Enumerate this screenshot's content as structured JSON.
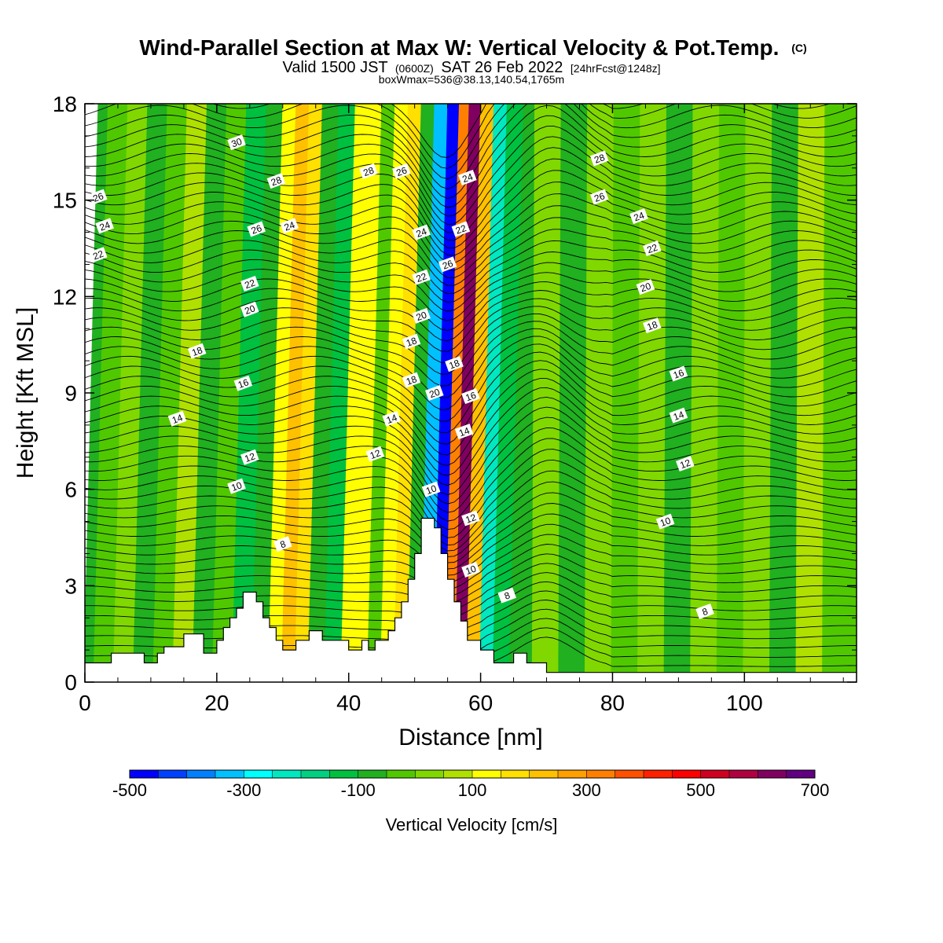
{
  "chart_data": {
    "type": "heatmap",
    "title_main": "Wind-Parallel Section at Max W: Vertical Velocity & Pot.Temp.",
    "title_mark": "(C)",
    "subtitle_a": "Valid 1500 JST",
    "subtitle_b": "(0600Z)",
    "subtitle_c": "SAT 26 Feb 2022",
    "subtitle_d": "[24hrFcst@1248z]",
    "subtitle2": "boxWmax=536@38.13,140.54,1765m",
    "xlabel": "Distance [nm]",
    "ylabel": "Height [Kft MSL]",
    "xlim": [
      0,
      117
    ],
    "ylim": [
      0,
      18
    ],
    "xticks": [
      "0",
      "20",
      "40",
      "60",
      "80",
      "100"
    ],
    "xtick_values": [
      0,
      20,
      40,
      60,
      80,
      100
    ],
    "yticks": [
      "0",
      "3",
      "6",
      "9",
      "12",
      "15",
      "18"
    ],
    "ytick_values": [
      0,
      3,
      6,
      9,
      12,
      15,
      18
    ],
    "colorbar": {
      "title": "Vertical Velocity [cm/s]",
      "labels": [
        "-500",
        "-300",
        "-100",
        "100",
        "300",
        "500",
        "700"
      ],
      "label_values": [
        -500,
        -300,
        -100,
        100,
        300,
        500,
        700
      ],
      "min": -500,
      "max": 700,
      "colors": [
        "#0000ff",
        "#0040ff",
        "#0080ff",
        "#00c0ff",
        "#00ffff",
        "#00e8c0",
        "#00d080",
        "#00c040",
        "#20b020",
        "#50c800",
        "#80d800",
        "#b0e000",
        "#ffff00",
        "#ffe000",
        "#ffc000",
        "#ffa000",
        "#ff8000",
        "#ff5000",
        "#ff2000",
        "#ff0000",
        "#d00020",
        "#b00040",
        "#800060",
        "#600080"
      ]
    },
    "bands": [
      {
        "x": 0,
        "w": -80
      },
      {
        "x": 3,
        "w": -40
      },
      {
        "x": 6,
        "w": 20
      },
      {
        "x": 9,
        "w": -60
      },
      {
        "x": 12,
        "w": -30
      },
      {
        "x": 15,
        "w": 60
      },
      {
        "x": 18,
        "w": -90
      },
      {
        "x": 21,
        "w": -20
      },
      {
        "x": 24,
        "w": -150
      },
      {
        "x": 27,
        "w": -100
      },
      {
        "x": 29,
        "w": 100
      },
      {
        "x": 31,
        "w": 230
      },
      {
        "x": 33,
        "w": 150
      },
      {
        "x": 35,
        "w": -60
      },
      {
        "x": 38,
        "w": -150
      },
      {
        "x": 40,
        "w": 100
      },
      {
        "x": 42,
        "w": 140
      },
      {
        "x": 44,
        "w": -40
      },
      {
        "x": 46,
        "w": 120
      },
      {
        "x": 48,
        "w": 150
      },
      {
        "x": 50,
        "w": -100
      },
      {
        "x": 52,
        "w": -320
      },
      {
        "x": 54,
        "w": -480
      },
      {
        "x": 55.5,
        "w": 300
      },
      {
        "x": 57,
        "w": 620
      },
      {
        "x": 59,
        "w": 200
      },
      {
        "x": 61,
        "w": -250
      },
      {
        "x": 63,
        "w": -120
      },
      {
        "x": 66,
        "w": -60
      },
      {
        "x": 70,
        "w": 40
      },
      {
        "x": 74,
        "w": -80
      },
      {
        "x": 78,
        "w": 20
      },
      {
        "x": 82,
        "w": -50
      },
      {
        "x": 86,
        "w": 30
      },
      {
        "x": 90,
        "w": -70
      },
      {
        "x": 94,
        "w": 40
      },
      {
        "x": 98,
        "w": -40
      },
      {
        "x": 102,
        "w": 30
      },
      {
        "x": 106,
        "w": -60
      },
      {
        "x": 110,
        "w": 50
      },
      {
        "x": 114,
        "w": -30
      },
      {
        "x": 117,
        "w": -50
      }
    ],
    "terrain": [
      [
        0,
        0.6
      ],
      [
        4,
        0.6
      ],
      [
        4,
        0.9
      ],
      [
        9,
        0.9
      ],
      [
        9,
        0.6
      ],
      [
        11,
        0.6
      ],
      [
        11,
        0.9
      ],
      [
        12,
        0.9
      ],
      [
        12,
        1.1
      ],
      [
        15,
        1.1
      ],
      [
        15,
        1.5
      ],
      [
        18,
        1.5
      ],
      [
        18,
        0.9
      ],
      [
        20,
        0.9
      ],
      [
        20,
        1.3
      ],
      [
        21,
        1.3
      ],
      [
        21,
        1.7
      ],
      [
        22,
        1.7
      ],
      [
        22,
        2.0
      ],
      [
        23,
        2.0
      ],
      [
        23,
        2.3
      ],
      [
        24,
        2.3
      ],
      [
        24,
        2.8
      ],
      [
        26,
        2.8
      ],
      [
        26,
        2.5
      ],
      [
        27,
        2.5
      ],
      [
        27,
        2.0
      ],
      [
        28,
        2.0
      ],
      [
        28,
        1.7
      ],
      [
        29,
        1.7
      ],
      [
        29,
        1.3
      ],
      [
        30,
        1.3
      ],
      [
        30,
        1.0
      ],
      [
        32,
        1.0
      ],
      [
        32,
        1.3
      ],
      [
        34,
        1.3
      ],
      [
        34,
        1.6
      ],
      [
        36,
        1.6
      ],
      [
        36,
        1.3
      ],
      [
        40,
        1.3
      ],
      [
        40,
        1.0
      ],
      [
        42,
        1.0
      ],
      [
        42,
        1.3
      ],
      [
        43,
        1.3
      ],
      [
        43,
        1.0
      ],
      [
        44,
        1.0
      ],
      [
        44,
        1.3
      ],
      [
        46,
        1.3
      ],
      [
        46,
        1.6
      ],
      [
        47,
        1.6
      ],
      [
        47,
        2.0
      ],
      [
        48,
        2.0
      ],
      [
        48,
        2.5
      ],
      [
        49,
        2.5
      ],
      [
        49,
        3.2
      ],
      [
        50,
        3.2
      ],
      [
        50,
        4.0
      ],
      [
        51,
        4.0
      ],
      [
        51,
        5.1
      ],
      [
        53,
        5.1
      ],
      [
        53,
        4.8
      ],
      [
        54,
        4.8
      ],
      [
        54,
        4.0
      ],
      [
        55,
        4.0
      ],
      [
        55,
        3.2
      ],
      [
        56,
        3.2
      ],
      [
        56,
        2.5
      ],
      [
        57,
        2.5
      ],
      [
        57,
        1.9
      ],
      [
        58,
        1.9
      ],
      [
        58,
        1.3
      ],
      [
        60,
        1.3
      ],
      [
        60,
        1.0
      ],
      [
        62,
        1.0
      ],
      [
        62,
        0.6
      ],
      [
        65,
        0.6
      ],
      [
        65,
        0.9
      ],
      [
        67,
        0.9
      ],
      [
        67,
        0.6
      ],
      [
        70,
        0.6
      ],
      [
        70,
        0.3
      ],
      [
        117,
        0.3
      ]
    ],
    "contour_labels": [
      {
        "text": "30",
        "x": 23,
        "y": 16.8
      },
      {
        "text": "28",
        "x": 29,
        "y": 15.6
      },
      {
        "text": "26",
        "x": 2,
        "y": 15.1
      },
      {
        "text": "24",
        "x": 3,
        "y": 14.2
      },
      {
        "text": "22",
        "x": 2,
        "y": 13.3
      },
      {
        "text": "26",
        "x": 26,
        "y": 14.1
      },
      {
        "text": "24",
        "x": 31,
        "y": 14.2
      },
      {
        "text": "22",
        "x": 25,
        "y": 12.4
      },
      {
        "text": "20",
        "x": 25,
        "y": 11.6
      },
      {
        "text": "18",
        "x": 17,
        "y": 10.3
      },
      {
        "text": "16",
        "x": 24,
        "y": 9.3
      },
      {
        "text": "14",
        "x": 14,
        "y": 8.2
      },
      {
        "text": "12",
        "x": 25,
        "y": 7.0
      },
      {
        "text": "10",
        "x": 23,
        "y": 6.1
      },
      {
        "text": "8",
        "x": 30,
        "y": 4.3
      },
      {
        "text": "28",
        "x": 43,
        "y": 15.9
      },
      {
        "text": "26",
        "x": 48,
        "y": 15.9
      },
      {
        "text": "24",
        "x": 58,
        "y": 15.7
      },
      {
        "text": "24",
        "x": 51,
        "y": 14.0
      },
      {
        "text": "22",
        "x": 57,
        "y": 14.1
      },
      {
        "text": "26",
        "x": 55,
        "y": 13.0
      },
      {
        "text": "22",
        "x": 51,
        "y": 12.6
      },
      {
        "text": "20",
        "x": 51,
        "y": 11.4
      },
      {
        "text": "18",
        "x": 49.5,
        "y": 10.6
      },
      {
        "text": "18",
        "x": 56,
        "y": 9.9
      },
      {
        "text": "18",
        "x": 49.5,
        "y": 9.4
      },
      {
        "text": "20",
        "x": 53,
        "y": 9.0
      },
      {
        "text": "16",
        "x": 58.5,
        "y": 8.9
      },
      {
        "text": "14",
        "x": 46.5,
        "y": 8.2
      },
      {
        "text": "14",
        "x": 57.5,
        "y": 7.8
      },
      {
        "text": "12",
        "x": 44,
        "y": 7.1
      },
      {
        "text": "10",
        "x": 52.5,
        "y": 6.0
      },
      {
        "text": "12",
        "x": 58.5,
        "y": 5.1
      },
      {
        "text": "10",
        "x": 58.5,
        "y": 3.5
      },
      {
        "text": "8",
        "x": 64,
        "y": 2.7
      },
      {
        "text": "28",
        "x": 78,
        "y": 16.3
      },
      {
        "text": "26",
        "x": 78,
        "y": 15.1
      },
      {
        "text": "24",
        "x": 84,
        "y": 14.5
      },
      {
        "text": "22",
        "x": 86,
        "y": 13.5
      },
      {
        "text": "20",
        "x": 85,
        "y": 12.3
      },
      {
        "text": "18",
        "x": 86,
        "y": 11.1
      },
      {
        "text": "16",
        "x": 90,
        "y": 9.6
      },
      {
        "text": "14",
        "x": 90,
        "y": 8.3
      },
      {
        "text": "12",
        "x": 91,
        "y": 6.8
      },
      {
        "text": "10",
        "x": 88,
        "y": 5.0
      },
      {
        "text": "8",
        "x": 94,
        "y": 2.2
      }
    ]
  }
}
